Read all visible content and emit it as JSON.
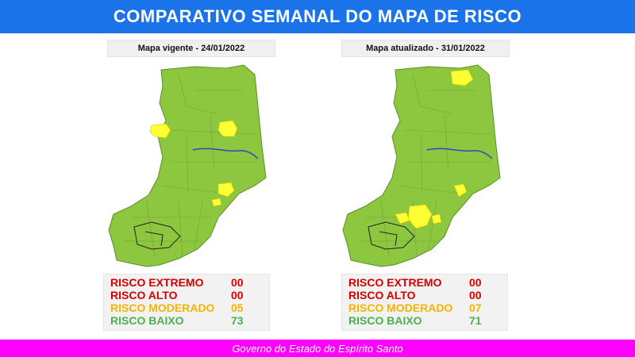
{
  "header": {
    "title": "COMPARATIVO SEMANAL DO MAPA DE RISCO"
  },
  "maps": [
    {
      "label": "Mapa vigente - 24/01/2022",
      "stats": [
        {
          "name": "RISCO EXTREMO",
          "count": "00",
          "color": "#d40000"
        },
        {
          "name": "RISCO ALTO",
          "count": "00",
          "color": "#d40000"
        },
        {
          "name": "RISCO MODERADO",
          "count": "05",
          "color": "#f5b400"
        },
        {
          "name": "RISCO BAIXO",
          "count": "73",
          "color": "#4caf50"
        }
      ]
    },
    {
      "label": "Mapa atualizado - 31/01/2022",
      "stats": [
        {
          "name": "RISCO EXTREMO",
          "count": "00",
          "color": "#d40000"
        },
        {
          "name": "RISCO ALTO",
          "count": "00",
          "color": "#d40000"
        },
        {
          "name": "RISCO MODERADO",
          "count": "07",
          "color": "#f5b400"
        },
        {
          "name": "RISCO BAIXO",
          "count": "71",
          "color": "#4caf50"
        }
      ]
    }
  ],
  "colors": {
    "header_bg": "#1a73e8",
    "footer_bg": "#ff00ff",
    "risco_baixo_map": "#8dc63f",
    "risco_moderado_map": "#ffff33"
  },
  "footer": {
    "text": "Governo do Estado do Espírito Santo"
  }
}
